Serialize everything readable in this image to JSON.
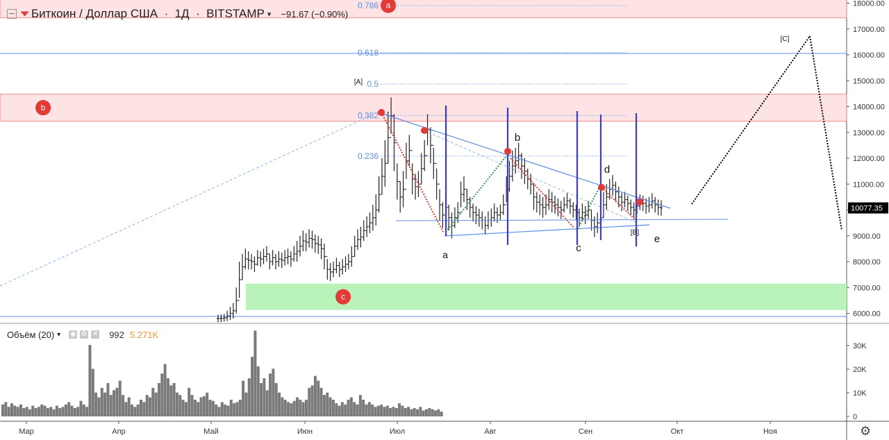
{
  "header": {
    "symbol": "Биткоин / Доллар США",
    "interval": "1Д",
    "exchange": "BITSTAMP",
    "change": "−91.67 (−0.90%)"
  },
  "volume_header": {
    "label": "Объём (20)",
    "value_1": "992",
    "value_2": "5.271K"
  },
  "price_badge": "10077.35",
  "colors": {
    "up_down_bars": "#222222",
    "zone_red": "#f8b4b4",
    "zone_green": "#b2f2b2",
    "trend": "#5b8def",
    "wave_lines": "#3a3ad6",
    "volume": "#7a7a7a",
    "badge": "#000000"
  },
  "chart_data": [
    {
      "type": "line",
      "title": "",
      "series": [
        {
          "values": [
            5800,
            5810,
            5830,
            5900,
            6000,
            6100,
            6500,
            7300,
            7800,
            8100,
            8050,
            8000,
            7900,
            8150,
            8100,
            8200,
            8300,
            8000,
            8150,
            8000,
            8100,
            8050,
            8150,
            8200,
            8100,
            8300,
            8400,
            8600,
            8800,
            8750,
            8900,
            8850,
            8700,
            8650,
            8500,
            8200,
            7700,
            7600,
            7700,
            7850,
            7700,
            7800,
            7900,
            8000,
            8200,
            8600,
            8850,
            8950,
            9200,
            9350,
            9500,
            9700,
            10000,
            10600,
            11300,
            11800,
            12800,
            13650,
            12600,
            11100,
            10500,
            10800,
            11900,
            12300,
            11200,
            10900,
            11000,
            11600,
            12100,
            13100,
            12500,
            11800,
            11000,
            10200,
            9800,
            10100,
            9700,
            9400,
            9700,
            9900,
            10600,
            10800,
            10400,
            10100,
            9900,
            9800,
            9700,
            9600,
            9400,
            9600,
            9700,
            9900,
            9800,
            9900,
            10200,
            10800,
            11300,
            11700,
            11900,
            12100,
            11700,
            11500,
            11200,
            11000,
            10500,
            10300,
            10200,
            10100,
            10200,
            10400,
            10300,
            10200,
            10100,
            10000,
            10200,
            10350,
            10150,
            10000,
            9900,
            9700,
            9900,
            9800,
            10000,
            9600,
            9350,
            9500,
            9700,
            10200,
            10500,
            10800,
            10950,
            10700,
            10500,
            10300,
            10400,
            10250,
            10100,
            10000,
            10150,
            10300,
            10250,
            10150,
            10200,
            10350,
            10200,
            10100,
            10077
          ],
          "wicks": [
            150,
            150,
            150,
            200,
            250,
            300,
            500,
            700,
            500,
            400,
            350,
            300,
            300,
            300,
            300,
            300,
            300,
            300,
            300,
            300,
            300,
            300,
            300,
            300,
            300,
            300,
            400,
            400,
            400,
            350,
            350,
            350,
            350,
            350,
            400,
            500,
            400,
            350,
            300,
            300,
            300,
            300,
            300,
            300,
            400,
            400,
            400,
            400,
            400,
            400,
            400,
            500,
            600,
            700,
            700,
            900,
            1000,
            700,
            1100,
            700,
            600,
            700,
            700,
            600,
            600,
            500,
            500,
            600,
            600,
            600,
            700,
            600,
            600,
            600,
            500,
            500,
            500,
            500,
            400,
            400,
            500,
            500,
            400,
            400,
            350,
            350,
            350,
            350,
            350,
            350,
            350,
            350,
            300,
            300,
            400,
            500,
            600,
            600,
            500,
            500,
            500,
            500,
            400,
            400,
            500,
            400,
            400,
            400,
            400,
            400,
            400,
            350,
            350,
            350,
            300,
            300,
            300,
            300,
            300,
            350,
            350,
            350,
            350,
            400,
            400,
            400,
            500,
            500,
            500,
            400,
            400,
            400,
            400,
            350,
            300,
            300,
            300,
            300,
            300,
            300,
            300,
            300,
            300,
            300,
            300,
            300,
            300
          ]
        }
      ],
      "x_start": "2019-05-06",
      "x_labels": [
        "Мар",
        "Апр",
        "Май",
        "Июн",
        "Июл",
        "Авг",
        "Сен",
        "Окт",
        "Ноя"
      ],
      "y_ticks": [
        "6000.00",
        "7000.00",
        "8000.00",
        "9000.00",
        "10000.00",
        "11000.00",
        "12000.00",
        "13000.00",
        "14000.00",
        "15000.00",
        "16000.00",
        "17000.00",
        "18000.00"
      ],
      "fib_levels": [
        {
          "label": "0.786",
          "value": 17900
        },
        {
          "label": "0.618",
          "value": 16080
        },
        {
          "label": "0.5",
          "value": 14870
        },
        {
          "label": "0.382",
          "value": 13650
        },
        {
          "label": "0.236",
          "value": 12080
        }
      ],
      "zones": [
        {
          "label": "a",
          "from": 17430,
          "to": 18400
        },
        {
          "label": "b",
          "from": 13430,
          "to": 14480
        },
        {
          "label": "c",
          "from": 6130,
          "to": 7150
        }
      ],
      "wave_labels": [
        "a",
        "b",
        "c",
        "d",
        "e",
        "[A]",
        "[B]",
        "[C]"
      ]
    },
    {
      "type": "bar",
      "title": "",
      "ylabel": "",
      "y_ticks": [
        "0",
        "10K",
        "20K",
        "30K"
      ],
      "values": [
        5000,
        6000,
        4000,
        5500,
        4500,
        4000,
        5000,
        3500,
        4000,
        3000,
        4500,
        3500,
        4000,
        5000,
        4500,
        3500,
        4000,
        3000,
        4500,
        3500,
        4000,
        5000,
        6000,
        4500,
        3500,
        4000,
        6500,
        5000,
        4000,
        30000,
        20000,
        10000,
        8000,
        12000,
        10000,
        14000,
        9000,
        11000,
        12000,
        15000,
        9000,
        6000,
        8000,
        5000,
        4000,
        5000,
        7000,
        6000,
        9000,
        8000,
        12000,
        10000,
        14000,
        18000,
        22000,
        16000,
        13000,
        14000,
        10000,
        9000,
        7000,
        6000,
        12000,
        9000,
        7000,
        6000,
        8000,
        8500,
        10000,
        7000,
        6500,
        5000,
        4000,
        6000,
        5000,
        4500,
        7000,
        5500,
        6000,
        7000,
        15000,
        10000,
        16000,
        25000,
        36000,
        21000,
        14000,
        16000,
        11000,
        18000,
        20000,
        14000,
        10000,
        8000,
        7000,
        6000,
        5500,
        6500,
        8000,
        7000,
        6000,
        7000,
        12000,
        13000,
        17000,
        15000,
        12000,
        9000,
        10000,
        8000,
        7000,
        5500,
        4500,
        6000,
        5000,
        7000,
        8000,
        6000,
        5000,
        9000,
        7000,
        5000,
        6000,
        5000,
        4000,
        4500,
        5000,
        4000,
        4500,
        3500,
        4000,
        3500,
        5500,
        4500,
        3500,
        4000,
        3000,
        3500,
        3000,
        4000,
        2500,
        3000,
        3500,
        3000,
        2500,
        3000,
        2000
      ]
    }
  ]
}
